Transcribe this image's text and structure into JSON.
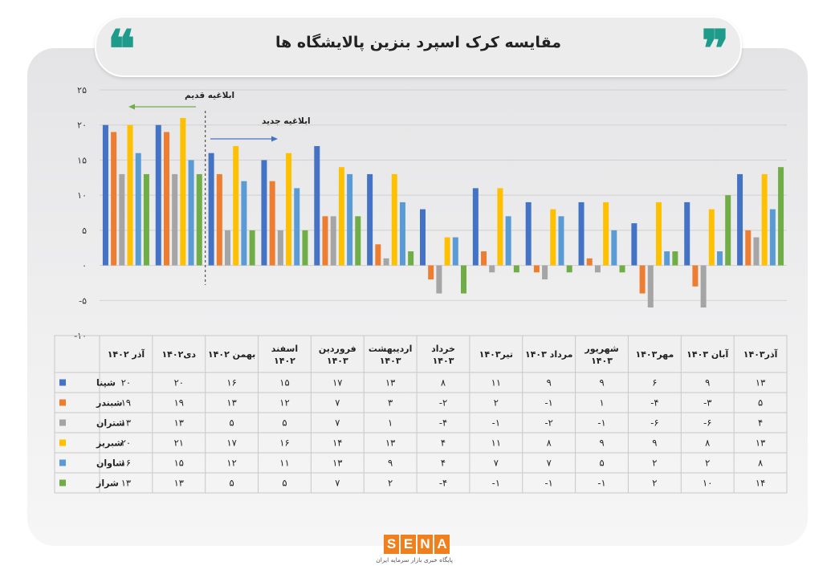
{
  "header": {
    "title": "مقایسه کرک اسپرد بنزین پالایشگاه ها",
    "quote_open": "❝",
    "quote_close": "❞"
  },
  "annotations": {
    "old": "ابلاغیه قدیم",
    "new": "ابلاغیه جدید"
  },
  "colors": {
    "accent": "#1e9b8a",
    "logo": "#f07f1e"
  },
  "logo": {
    "letters": [
      "S",
      "E",
      "N",
      "A"
    ],
    "subtitle": "پایگاه خبری بازار سرمایه ایران"
  },
  "chart_data": {
    "type": "bar",
    "categories": [
      "آذر ۱۴۰۲",
      "دی۱۴۰۲",
      "بهمن ۱۴۰۲",
      "اسفند ۱۴۰۲",
      "فروردین ۱۴۰۳",
      "اردیبهشت ۱۴۰۳",
      "خرداد ۱۴۰۳",
      "تیر۱۴۰۳",
      "مرداد ۱۴۰۳",
      "شهریور ۱۴۰۳",
      "مهر۱۴۰۳",
      "آبان ۱۴۰۳",
      "آذر۱۴۰۳"
    ],
    "series": [
      {
        "name": "شپنا",
        "color": "#4472c4",
        "values": [
          20,
          20,
          16,
          15,
          17,
          13,
          8,
          11,
          9,
          9,
          6,
          9,
          13
        ],
        "labels": [
          "۲۰",
          "۲۰",
          "۱۶",
          "۱۵",
          "۱۷",
          "۱۳",
          "۸",
          "۱۱",
          "۹",
          "۹",
          "۶",
          "۹",
          "۱۳"
        ]
      },
      {
        "name": "شبندر",
        "color": "#ed7d31",
        "values": [
          19,
          19,
          13,
          12,
          7,
          3,
          -2,
          2,
          -1,
          1,
          -4,
          -3,
          5
        ],
        "labels": [
          "۱۹",
          "۱۹",
          "۱۳",
          "۱۲",
          "۷",
          "۳",
          "-۲",
          "۲",
          "-۱",
          "۱",
          "-۴",
          "-۳",
          "۵"
        ]
      },
      {
        "name": "شتران",
        "color": "#a5a5a5",
        "values": [
          13,
          13,
          5,
          5,
          7,
          1,
          -4,
          -1,
          -2,
          -1,
          -6,
          -6,
          4
        ],
        "labels": [
          "۱۳",
          "۱۳",
          "۵",
          "۵",
          "۷",
          "۱",
          "-۴",
          "-۱",
          "-۲",
          "-۱",
          "-۶",
          "-۶",
          "۴"
        ]
      },
      {
        "name": "شبریز",
        "color": "#ffc000",
        "values": [
          20,
          21,
          17,
          16,
          14,
          13,
          4,
          11,
          8,
          9,
          9,
          8,
          13
        ],
        "labels": [
          "۲۰",
          "۲۱",
          "۱۷",
          "۱۶",
          "۱۴",
          "۱۳",
          "۴",
          "۱۱",
          "۸",
          "۹",
          "۹",
          "۸",
          "۱۳"
        ]
      },
      {
        "name": "شاوان",
        "color": "#5b9bd5",
        "values": [
          16,
          15,
          12,
          11,
          13,
          9,
          4,
          7,
          7,
          5,
          2,
          2,
          8
        ],
        "labels": [
          "۱۶",
          "۱۵",
          "۱۲",
          "۱۱",
          "۱۳",
          "۹",
          "۴",
          "۷",
          "۷",
          "۵",
          "۲",
          "۲",
          "۸"
        ]
      },
      {
        "name": "شراز",
        "color": "#70ad47",
        "values": [
          13,
          13,
          5,
          5,
          7,
          2,
          -4,
          -1,
          -1,
          -1,
          2,
          10,
          14
        ],
        "labels": [
          "۱۳",
          "۱۳",
          "۵",
          "۵",
          "۷",
          "۲",
          "-۴",
          "-۱",
          "-۱",
          "-۱",
          "۲",
          "۱۰",
          "۱۴"
        ]
      }
    ],
    "ylim": [
      -10,
      25
    ],
    "yticks": [
      25,
      20,
      15,
      10,
      5,
      0,
      -5,
      -10
    ],
    "ytick_labels": [
      "۲۵",
      "۲۰",
      "۱۵",
      "۱۰",
      "۵",
      "۰",
      "-۵",
      "-۱۰"
    ],
    "grid": true,
    "legend": "table-left",
    "divider_after_category": 2
  }
}
